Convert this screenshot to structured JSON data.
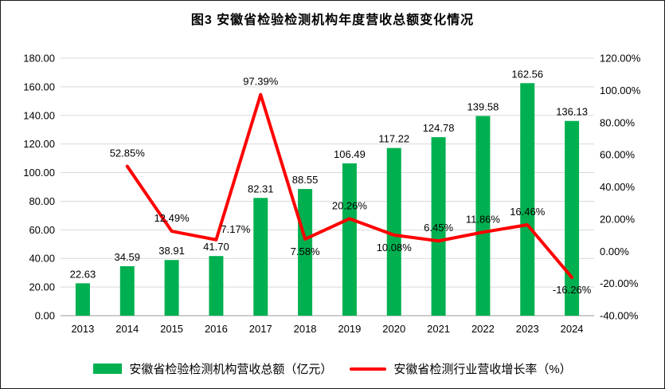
{
  "chart_data": {
    "type": "combo",
    "title": "图3 安徽省检验检测机构年度营收总额变化情况",
    "categories": [
      "2013",
      "2014",
      "2015",
      "2016",
      "2017",
      "2018",
      "2019",
      "2020",
      "2021",
      "2022",
      "2023",
      "2024"
    ],
    "series": [
      {
        "name": "安徽省检验检测机构营收总额（亿元）",
        "type": "bar",
        "axis": "left",
        "color": "#00B050",
        "values": [
          22.63,
          34.59,
          38.91,
          41.7,
          82.31,
          88.55,
          106.49,
          117.22,
          124.78,
          139.58,
          162.56,
          136.13
        ],
        "labels": [
          "22.63",
          "34.59",
          "38.91",
          "41.70",
          "82.31",
          "88.55",
          "106.49",
          "117.22",
          "124.78",
          "139.58",
          "162.56",
          "136.13"
        ]
      },
      {
        "name": "安徽省检测行业营收增长率（%）",
        "type": "line",
        "axis": "right",
        "color": "#FF0000",
        "values": [
          null,
          52.85,
          12.49,
          7.17,
          97.39,
          7.58,
          20.26,
          10.08,
          6.45,
          11.86,
          16.46,
          -16.26
        ],
        "labels": [
          null,
          "52.85%",
          "12.49%",
          "7.17%",
          "97.39%",
          "7.58%",
          "20.26%",
          "10.08%",
          "6.45%",
          "11.86%",
          "16.46%",
          "-16.26%"
        ],
        "label_positions": [
          null,
          "above",
          "above",
          "above-right",
          "above",
          "below",
          "above",
          "below",
          "above",
          "above",
          "above",
          "below"
        ]
      }
    ],
    "left_axis": {
      "min": 0,
      "max": 180,
      "step": 20,
      "tick_labels": [
        "0.00",
        "20.00",
        "40.00",
        "60.00",
        "80.00",
        "100.00",
        "120.00",
        "140.00",
        "160.00",
        "180.00"
      ]
    },
    "right_axis": {
      "min": -40,
      "max": 120,
      "step": 20,
      "tick_labels": [
        "-40.00%",
        "-20.00%",
        "0.00%",
        "20.00%",
        "40.00%",
        "60.00%",
        "80.00%",
        "100.00%",
        "120.00%"
      ]
    },
    "grid": true,
    "grid_color": "#d9d9d9",
    "axis_line_color": "#9a9a9a",
    "legend_position": "bottom"
  }
}
